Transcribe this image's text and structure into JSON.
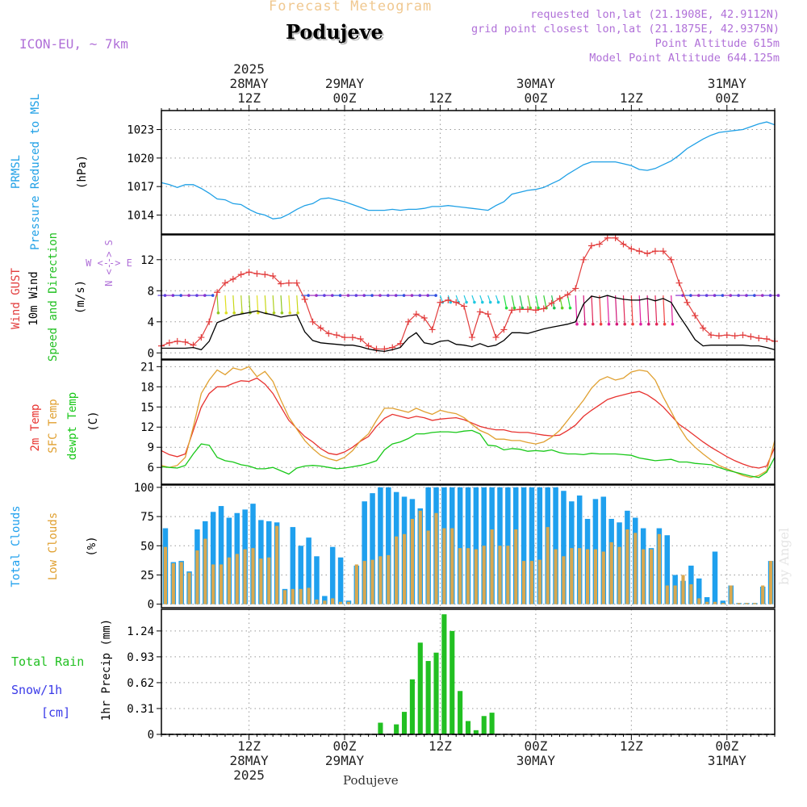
{
  "header": {
    "chart_title": "Forecast Meteogram",
    "location": "Podujeve",
    "model": "ICON-EU, ~ 7km",
    "requested": "requested lon,lat (21.1908E, 42.9112N)",
    "grid_point": "grid point closest lon,lat (21.1875E, 42.9375N)",
    "point_altitude": "Point Altitude 615m",
    "model_altitude": "Model Point Altitude 644.125m",
    "footer_location": "Podujeve",
    "watermark": "by Angel"
  },
  "time_axis": {
    "start_hour_offset": 0,
    "end_hour_offset": 77,
    "top_labels": [
      {
        "hour": 11,
        "lines": [
          "2025",
          "28MAY",
          "12Z"
        ]
      },
      {
        "hour": 23,
        "lines": [
          "29MAY",
          "00Z"
        ]
      },
      {
        "hour": 35,
        "lines": [
          "12Z"
        ]
      },
      {
        "hour": 47,
        "lines": [
          "30MAY",
          "00Z"
        ]
      },
      {
        "hour": 59,
        "lines": [
          "12Z"
        ]
      },
      {
        "hour": 71,
        "lines": [
          "31MAY",
          "00Z"
        ]
      }
    ],
    "bottom_labels": [
      {
        "hour": 11,
        "lines": [
          "12Z",
          "28MAY",
          "2025"
        ]
      },
      {
        "hour": 23,
        "lines": [
          "00Z",
          "29MAY"
        ]
      },
      {
        "hour": 35,
        "lines": [
          "12Z"
        ]
      },
      {
        "hour": 47,
        "lines": [
          "00Z",
          "30MAY"
        ]
      },
      {
        "hour": 59,
        "lines": [
          "12Z"
        ]
      },
      {
        "hour": 71,
        "lines": [
          "00Z",
          "31MAY"
        ]
      }
    ]
  },
  "labels": {
    "pressure": {
      "line1": "PRMSL",
      "line2": "Pressure Reduced to MSL",
      "unit": "(hPa)"
    },
    "wind": {
      "gust": "Wind GUST",
      "wind10": "10m Wind",
      "speed_dir": "Speed and Direction",
      "unit": "(m/s)",
      "compass_w": "W <--> E",
      "compass_ns": "N <--> S"
    },
    "temp": {
      "t2m": "2m Temp",
      "sfc": "SFC Temp",
      "dewpt": "dewpt Temp",
      "unit": "(C)"
    },
    "clouds": {
      "total": "Total Clouds",
      "low": "Low Clouds",
      "unit": "(%)"
    },
    "precip": {
      "rain": "Total  Rain",
      "snow": "Snow/1h",
      "snow_unit": "[cm]",
      "axis": "1hr Precip (mm)"
    }
  },
  "colors": {
    "pressure": "#1fa0e6",
    "gust": "#e23c3c",
    "wind": "#000000",
    "temp2m": "#e8322f",
    "sfc": "#e0a030",
    "dewpt": "#18c818",
    "total_cloud": "#1fa0ee",
    "low_cloud": "#d8a850",
    "rain": "#22c022",
    "snow": "#3a3ae8",
    "header_purple": "#b070d8",
    "title_orange": "#f0c890"
  },
  "chart_data": [
    {
      "type": "line",
      "title": "PRMSL Pressure Reduced to MSL",
      "ylabel": "(hPa)",
      "ylim": [
        1012,
        1025
      ],
      "yticks": [
        1014,
        1017,
        1020,
        1023
      ],
      "x_hours_start": 0,
      "values": [
        1017.4,
        1017.2,
        1016.9,
        1017.2,
        1017.2,
        1016.8,
        1016.3,
        1015.7,
        1015.6,
        1015.2,
        1015.1,
        1014.6,
        1014.2,
        1014.0,
        1013.6,
        1013.7,
        1014.1,
        1014.6,
        1015.0,
        1015.2,
        1015.7,
        1015.8,
        1015.6,
        1015.4,
        1015.1,
        1014.8,
        1014.5,
        1014.5,
        1014.5,
        1014.6,
        1014.5,
        1014.6,
        1014.6,
        1014.7,
        1014.9,
        1014.9,
        1015.0,
        1014.9,
        1014.8,
        1014.7,
        1014.6,
        1014.5,
        1015.0,
        1015.4,
        1016.2,
        1016.4,
        1016.6,
        1016.7,
        1016.9,
        1017.3,
        1017.7,
        1018.3,
        1018.8,
        1019.3,
        1019.6,
        1019.6,
        1019.6,
        1019.6,
        1019.4,
        1019.2,
        1018.8,
        1018.7,
        1018.9,
        1019.3,
        1019.7,
        1020.3,
        1021.0,
        1021.5,
        1022.0,
        1022.4,
        1022.7,
        1022.8,
        1022.9,
        1023.0,
        1023.3,
        1023.6,
        1023.8,
        1023.5
      ]
    },
    {
      "type": "line",
      "title": "Wind GUST / 10m Wind Speed and Direction",
      "ylabel": "(m/s)",
      "ylim": [
        -0.8,
        15.2
      ],
      "yticks": [
        0,
        4,
        8,
        12
      ],
      "x_hours_start": 0,
      "gust": [
        0.9,
        1.3,
        1.5,
        1.4,
        1.0,
        2.0,
        4.0,
        7.8,
        9.0,
        9.5,
        10.1,
        10.4,
        10.2,
        10.1,
        9.9,
        8.9,
        9.0,
        9.0,
        6.9,
        4.0,
        3.2,
        2.5,
        2.3,
        2.0,
        2.0,
        1.8,
        0.9,
        0.5,
        0.5,
        0.7,
        1.2,
        4.0,
        5.0,
        4.5,
        3.0,
        6.5,
        6.8,
        6.5,
        6.0,
        2.0,
        5.3,
        5.0,
        2.0,
        3.0,
        5.5,
        5.6,
        5.6,
        5.5,
        5.7,
        6.4,
        7.0,
        7.5,
        8.3,
        12.0,
        13.8,
        14.0,
        14.8,
        14.8,
        14.0,
        13.4,
        13.1,
        12.8,
        13.1,
        13.1,
        12.0,
        9.0,
        6.5,
        4.8,
        3.2,
        2.3,
        2.2,
        2.3,
        2.2,
        2.3,
        2.1,
        1.9,
        1.8,
        1.5
      ],
      "wind10m": [
        0.6,
        0.6,
        0.6,
        0.6,
        0.7,
        0.4,
        1.5,
        3.9,
        4.3,
        4.8,
        5.0,
        5.2,
        5.4,
        5.1,
        4.9,
        4.6,
        4.8,
        4.9,
        2.7,
        1.6,
        1.3,
        1.2,
        1.1,
        1.0,
        1.0,
        0.8,
        0.5,
        0.3,
        0.2,
        0.4,
        0.7,
        1.9,
        2.6,
        1.3,
        1.1,
        1.5,
        1.6,
        1.1,
        1.0,
        0.8,
        1.2,
        0.8,
        1.0,
        1.6,
        2.6,
        2.6,
        2.5,
        2.8,
        3.1,
        3.3,
        3.5,
        3.7,
        4.0,
        6.3,
        7.3,
        7.1,
        7.4,
        7.1,
        6.9,
        6.8,
        6.8,
        7.0,
        6.7,
        7.0,
        6.5,
        4.8,
        3.3,
        1.7,
        0.9,
        1.0,
        1.0,
        1.0,
        1.0,
        1.0,
        0.9,
        0.9,
        0.7,
        0.4
      ],
      "direction_note": "wind barbs shown as arrows along top band"
    },
    {
      "type": "line",
      "title": "2m Temp / SFC Temp / dewpt Temp",
      "ylabel": "(C)",
      "ylim": [
        3.5,
        22.0
      ],
      "yticks": [
        6,
        9,
        12,
        15,
        18,
        21
      ],
      "x_hours_start": 0,
      "series": [
        {
          "name": "2m Temp",
          "values": [
            8.5,
            7.9,
            7.6,
            8.0,
            11.5,
            15.0,
            17.0,
            18.0,
            18.0,
            18.5,
            18.9,
            18.8,
            19.3,
            18.4,
            17.0,
            15.0,
            13.0,
            11.8,
            10.6,
            9.8,
            8.8,
            8.1,
            7.9,
            8.3,
            9.0,
            9.9,
            10.6,
            12.1,
            13.3,
            13.9,
            13.6,
            13.3,
            13.6,
            13.4,
            13.0,
            13.2,
            13.3,
            13.4,
            13.1,
            12.6,
            12.1,
            11.8,
            11.6,
            11.6,
            11.3,
            11.2,
            11.2,
            11.0,
            10.8,
            10.7,
            10.8,
            11.5,
            12.3,
            13.6,
            14.5,
            15.3,
            16.1,
            16.5,
            16.8,
            17.1,
            17.3,
            16.8,
            16.0,
            15.0,
            13.7,
            12.4,
            11.6,
            10.7,
            9.8,
            9.0,
            8.3,
            7.6,
            7.0,
            6.5,
            6.1,
            5.9,
            6.2,
            9.0
          ]
        },
        {
          "name": "SFC Temp",
          "values": [
            6.3,
            6.0,
            6.3,
            7.5,
            12.0,
            17.0,
            19.0,
            20.5,
            19.8,
            20.8,
            20.5,
            21.0,
            19.5,
            20.3,
            18.8,
            16.0,
            13.5,
            11.7,
            10.0,
            8.8,
            7.8,
            7.3,
            7.0,
            7.5,
            8.5,
            10.0,
            11.0,
            13.0,
            14.8,
            14.8,
            14.5,
            14.2,
            14.8,
            14.3,
            13.9,
            14.5,
            14.2,
            14.0,
            13.4,
            12.4,
            11.5,
            11.0,
            10.2,
            10.2,
            10.0,
            10.0,
            9.7,
            9.5,
            9.8,
            10.5,
            11.5,
            13.0,
            14.5,
            16.0,
            17.8,
            19.0,
            19.5,
            19.0,
            19.3,
            20.2,
            20.5,
            20.3,
            19.0,
            16.5,
            14.3,
            12.0,
            10.2,
            9.0,
            8.0,
            7.1,
            6.3,
            5.8,
            5.3,
            4.8,
            4.5,
            4.8,
            5.5,
            10.0
          ]
        },
        {
          "name": "dewpt Temp",
          "values": [
            6.1,
            6.0,
            5.9,
            6.3,
            8.0,
            9.5,
            9.3,
            7.5,
            7.0,
            6.8,
            6.4,
            6.2,
            5.8,
            5.8,
            6.0,
            5.5,
            5.0,
            5.9,
            6.2,
            6.3,
            6.2,
            6.0,
            5.8,
            5.9,
            6.1,
            6.3,
            6.6,
            7.0,
            8.6,
            9.5,
            9.8,
            10.3,
            11.0,
            11.0,
            11.2,
            11.3,
            11.3,
            11.2,
            11.4,
            11.5,
            11.0,
            9.3,
            9.2,
            8.6,
            8.8,
            8.7,
            8.4,
            8.5,
            8.4,
            8.6,
            8.2,
            8.0,
            8.0,
            7.9,
            8.1,
            8.0,
            8.0,
            8.0,
            7.9,
            7.8,
            7.4,
            7.2,
            7.0,
            7.1,
            7.2,
            6.8,
            6.8,
            6.6,
            6.5,
            6.4,
            6.0,
            5.6,
            5.3,
            5.0,
            4.7,
            4.5,
            5.3,
            7.5
          ]
        }
      ]
    },
    {
      "type": "bar",
      "title": "Total Clouds / Low Clouds",
      "ylabel": "(%)",
      "ylim": [
        -3,
        102
      ],
      "yticks": [
        0,
        25,
        50,
        75,
        100
      ],
      "x_hours_start": 0,
      "series": [
        {
          "name": "Total Clouds",
          "values": [
            65,
            36,
            37,
            28,
            64,
            71,
            79,
            84,
            74,
            78,
            81,
            86,
            72,
            71,
            70,
            13,
            66,
            50,
            57,
            41,
            7,
            49,
            40,
            3,
            33,
            88,
            95,
            100,
            100,
            96,
            92,
            90,
            82,
            100,
            100,
            100,
            100,
            100,
            100,
            100,
            100,
            100,
            100,
            100,
            100,
            100,
            100,
            100,
            100,
            100,
            97,
            88,
            93,
            73,
            90,
            92,
            73,
            70,
            80,
            74,
            65,
            48,
            65,
            59,
            25,
            20,
            33,
            22,
            6,
            45,
            3,
            16,
            1,
            1,
            1,
            15,
            37,
            46
          ]
        },
        {
          "name": "Low Clouds",
          "values": [
            49,
            35,
            36,
            27,
            46,
            56,
            34,
            34,
            40,
            43,
            47,
            48,
            39,
            40,
            67,
            12,
            13,
            13,
            14,
            4,
            3,
            5,
            2,
            2,
            34,
            37,
            38,
            41,
            42,
            58,
            60,
            73,
            80,
            63,
            78,
            65,
            65,
            48,
            48,
            47,
            50,
            64,
            50,
            50,
            64,
            37,
            37,
            38,
            66,
            47,
            41,
            48,
            48,
            47,
            47,
            45,
            53,
            49,
            64,
            61,
            47,
            47,
            60,
            16,
            16,
            25,
            17,
            5,
            2,
            2,
            1,
            16,
            1,
            1,
            1,
            16,
            37,
            46
          ]
        }
      ]
    },
    {
      "type": "bar",
      "title": "1hr Precip (mm)",
      "ylabel": "1hr Precip (mm)",
      "ylim": [
        0,
        1.5
      ],
      "yticks": [
        0,
        0.31,
        0.62,
        0.93,
        1.24
      ],
      "tick_labels": [
        "0",
        "0.31",
        "0.62",
        "0.93",
        "1.24"
      ],
      "x_hours_start": 0,
      "series": [
        {
          "name": "Total Rain",
          "values": [
            0,
            0,
            0,
            0,
            0,
            0,
            0,
            0,
            0,
            0,
            0,
            0,
            0,
            0,
            0,
            0,
            0,
            0,
            0,
            0,
            0,
            0,
            0,
            0,
            0,
            0,
            0,
            0.14,
            0,
            0.12,
            0.27,
            0.66,
            1.1,
            0.88,
            0.98,
            1.44,
            1.24,
            0.52,
            0.16,
            0.05,
            0.22,
            0.26,
            0,
            0,
            0,
            0,
            0,
            0,
            0,
            0,
            0,
            0,
            0,
            0,
            0,
            0,
            0,
            0,
            0,
            0,
            0,
            0,
            0,
            0,
            0,
            0,
            0,
            0,
            0,
            0,
            0,
            0,
            0,
            0,
            0,
            0,
            0,
            0
          ]
        },
        {
          "name": "Snow/1h",
          "values": []
        }
      ]
    }
  ]
}
